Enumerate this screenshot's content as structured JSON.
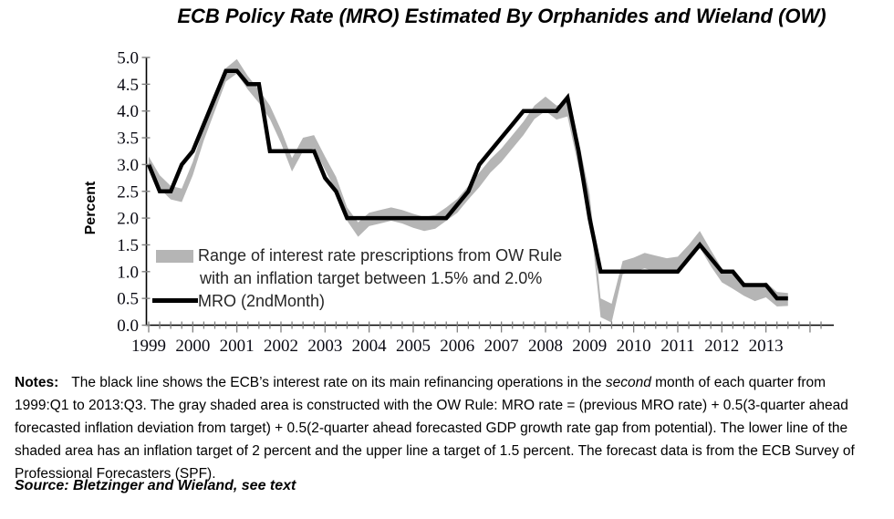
{
  "page_title": "ECB Policy Rate (MRO) Estimated By Orphanides and Wieland (OW)",
  "y_axis": {
    "label": "Percent",
    "tick_labels": [
      "5.0",
      "4.5",
      "4.0",
      "3.5",
      "3.0",
      "2.5",
      "2.0",
      "1.5",
      "1.0",
      "0.5",
      "0.0"
    ]
  },
  "x_axis": {
    "year_labels": [
      "1999",
      "2000",
      "2001",
      "2002",
      "2003",
      "2004",
      "2005",
      "2006",
      "2007",
      "2008",
      "2009",
      "2010",
      "2011",
      "2012",
      "2013"
    ]
  },
  "legend": {
    "band_line1": "Range of interest rate prescriptions from OW Rule",
    "band_line2": "with an inflation target between 1.5% and 2.0%",
    "mro_label": "MRO (2ndMonth)"
  },
  "notes": {
    "label": "Notes:",
    "part1": "The black line shows the ECB’s interest rate on its main refinancing operations in the ",
    "italic_word": "second",
    "part2": " month of each quarter from 1999:Q1 to 2013:Q3. The gray shaded area is constructed with the OW Rule: MRO rate = (previous MRO rate) + 0.5(3-quarter ahead forecasted inflation deviation from target) + 0.5(2-quarter ahead forecasted GDP growth rate gap from potential). The lower line of the shaded area has an inflation target of 2 percent and the upper line a target of 1.5 percent. The forecast data is from the ECB Survey of Professional Forecasters (SPF)."
  },
  "source": "Source: Bletzinger and Wieland, see text",
  "colors": {
    "band": "#b5b5b5",
    "line": "#000000",
    "axis": "#000000",
    "tick": "#808080"
  },
  "chart_data": {
    "type": "line",
    "title": "ECB Policy Rate (MRO) Estimated By Orphanides and Wieland (OW)",
    "x_unit": "quarter",
    "x_range": [
      "1999:Q1",
      "2013:Q3"
    ],
    "categories_years": [
      "1999",
      "2000",
      "2001",
      "2002",
      "2003",
      "2004",
      "2005",
      "2006",
      "2007",
      "2008",
      "2009",
      "2010",
      "2011",
      "2012",
      "2013"
    ],
    "ylabel": "Percent",
    "ylim": [
      0.0,
      5.0
    ],
    "y_tick_step": 0.5,
    "grid": false,
    "legend_position": "inside-lower-left",
    "series": [
      {
        "name": "MRO (2ndMonth)",
        "style": "thick-black-line",
        "values": [
          3.0,
          2.5,
          2.5,
          3.0,
          3.25,
          3.75,
          4.25,
          4.75,
          4.75,
          4.5,
          4.5,
          3.25,
          3.25,
          3.25,
          3.25,
          3.25,
          2.75,
          2.5,
          2.0,
          2.0,
          2.0,
          2.0,
          2.0,
          2.0,
          2.0,
          2.0,
          2.0,
          2.0,
          2.25,
          2.5,
          3.0,
          3.25,
          3.5,
          3.75,
          4.0,
          4.0,
          4.0,
          4.0,
          4.25,
          3.25,
          2.0,
          1.0,
          1.0,
          1.0,
          1.0,
          1.0,
          1.0,
          1.0,
          1.0,
          1.25,
          1.5,
          1.25,
          1.0,
          1.0,
          0.75,
          0.75,
          0.75,
          0.5,
          0.5
        ]
      },
      {
        "name": "OW Rule prescription upper bound (1.5% inflation target)",
        "style": "band-upper",
        "values": [
          3.15,
          2.8,
          2.6,
          2.55,
          3.05,
          3.7,
          4.25,
          4.8,
          4.97,
          4.65,
          4.4,
          4.1,
          3.65,
          3.12,
          3.5,
          3.55,
          3.15,
          2.77,
          2.2,
          1.92,
          2.1,
          2.15,
          2.2,
          2.15,
          2.08,
          2.02,
          2.06,
          2.2,
          2.36,
          2.6,
          2.85,
          3.1,
          3.3,
          3.55,
          3.8,
          4.1,
          4.27,
          4.1,
          4.17,
          3.45,
          2.45,
          0.5,
          0.4,
          1.2,
          1.26,
          1.35,
          1.3,
          1.25,
          1.28,
          1.5,
          1.76,
          1.4,
          1.06,
          0.95,
          0.8,
          0.72,
          0.8,
          0.62,
          0.6
        ]
      },
      {
        "name": "OW Rule prescription lower bound (2.0% inflation target)",
        "style": "band-lower",
        "values": [
          2.9,
          2.55,
          2.35,
          2.3,
          2.8,
          3.45,
          4.0,
          4.55,
          4.7,
          4.4,
          4.15,
          3.85,
          3.4,
          2.87,
          3.25,
          3.3,
          2.9,
          2.5,
          1.95,
          1.65,
          1.85,
          1.9,
          1.95,
          1.9,
          1.82,
          1.76,
          1.8,
          1.95,
          2.1,
          2.35,
          2.58,
          2.85,
          3.05,
          3.3,
          3.55,
          3.85,
          4.0,
          3.84,
          3.9,
          2.95,
          2.1,
          0.15,
          0.05,
          0.95,
          1.0,
          1.06,
          1.0,
          0.98,
          1.0,
          1.2,
          1.45,
          1.1,
          0.8,
          0.68,
          0.55,
          0.45,
          0.52,
          0.35,
          0.36
        ]
      }
    ]
  }
}
